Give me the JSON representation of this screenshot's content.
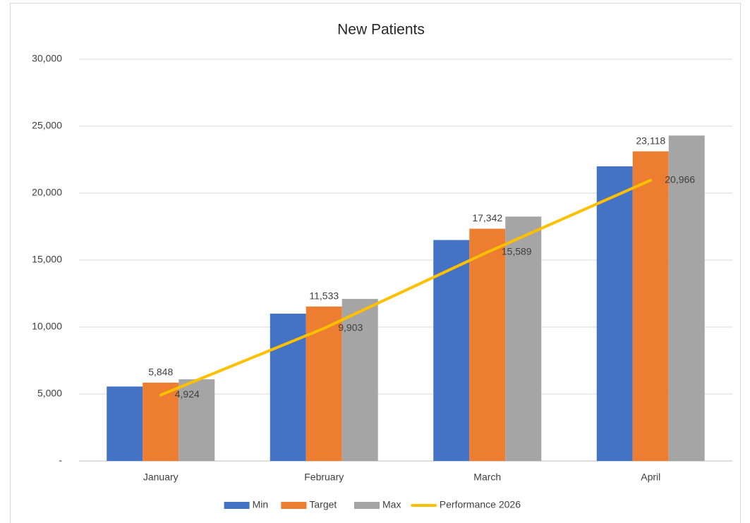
{
  "chart_data": {
    "type": "bar",
    "title": "New Patients",
    "categories": [
      "January",
      "February",
      "March",
      "April"
    ],
    "series": [
      {
        "name": "Min",
        "type": "bar",
        "color": "#4472c4",
        "values": [
          5560,
          11000,
          16500,
          22000
        ]
      },
      {
        "name": "Target",
        "type": "bar",
        "color": "#ed7d31",
        "values": [
          5848,
          11533,
          17342,
          23118
        ],
        "value_labels": [
          "5,848",
          "11,533",
          "17,342",
          "23,118"
        ]
      },
      {
        "name": "Max",
        "type": "bar",
        "color": "#a5a5a5",
        "values": [
          6100,
          12100,
          18250,
          24300
        ]
      },
      {
        "name": "Performance 2026",
        "type": "line",
        "color": "#ffc000",
        "values": [
          4924,
          9903,
          15589,
          20966
        ],
        "value_labels": [
          "4,924",
          "9,903",
          "15,589",
          "20,966"
        ]
      }
    ],
    "ylim": [
      0,
      30000
    ],
    "yticks": [
      {
        "value": 0,
        "label": "-"
      },
      {
        "value": 5000,
        "label": "5,000"
      },
      {
        "value": 10000,
        "label": "10,000"
      },
      {
        "value": 15000,
        "label": "15,000"
      },
      {
        "value": 20000,
        "label": "20,000"
      },
      {
        "value": 25000,
        "label": "25,000"
      },
      {
        "value": 30000,
        "label": "30,000"
      }
    ],
    "grid": true,
    "legend": "bottom"
  }
}
